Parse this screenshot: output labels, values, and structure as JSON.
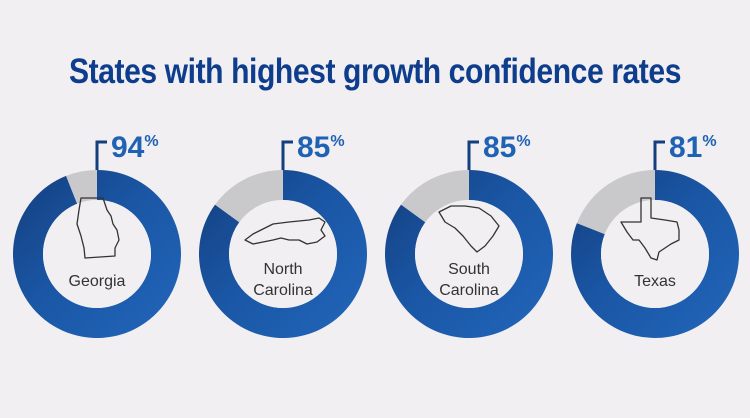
{
  "chart_data": {
    "type": "pie",
    "title": "States with highest growth confidence rates",
    "categories": [
      "Georgia",
      "North Carolina",
      "South Carolina",
      "Texas"
    ],
    "series": [
      {
        "values": [
          94,
          85,
          85,
          81
        ],
        "labels": [
          "94",
          "85",
          "85",
          "81"
        ]
      }
    ],
    "value_suffix": "%",
    "label_lines": [
      [
        "Georgia"
      ],
      [
        "North",
        "Carolina"
      ],
      [
        "South",
        "Carolina"
      ],
      [
        "Texas"
      ]
    ],
    "colors": {
      "main": "#1f62b4",
      "main_dark": "#143e7e",
      "remainder": "#c9c9cb",
      "title": "#0d3d8c",
      "value": "#1f62b4"
    },
    "icons": [
      "georgia-outline-icon",
      "north-carolina-outline-icon",
      "south-carolina-outline-icon",
      "texas-outline-icon"
    ]
  }
}
